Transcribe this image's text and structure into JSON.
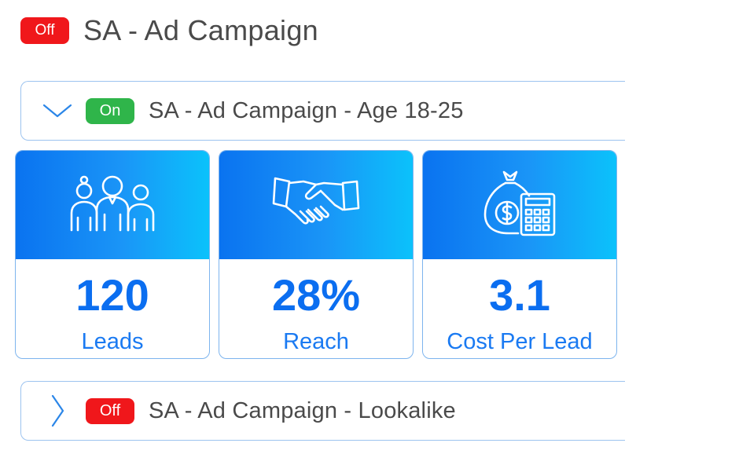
{
  "campaign": {
    "status": "Off",
    "title": "SA - Ad Campaign"
  },
  "adsets": [
    {
      "status": "On",
      "title": "SA - Ad Campaign - Age 18-25",
      "expanded": true,
      "chevron_icon": "chevron-down-icon"
    },
    {
      "status": "Off",
      "title": "SA - Ad Campaign - Lookalike",
      "expanded": false,
      "chevron_icon": "chevron-right-icon"
    }
  ],
  "metrics": [
    {
      "icon": "people-group-icon",
      "value": "120",
      "label": "Leads"
    },
    {
      "icon": "handshake-icon",
      "value": "28%",
      "label": "Reach"
    },
    {
      "icon": "money-bag-calculator-icon",
      "value": "3.1",
      "label": "Cost Per Lead"
    }
  ],
  "colors": {
    "off": "#f0171b",
    "on": "#2fb54a",
    "accent_blue": "#0b6ef0",
    "gradient_start": "#0a73f0",
    "gradient_end": "#0bc2fb"
  }
}
